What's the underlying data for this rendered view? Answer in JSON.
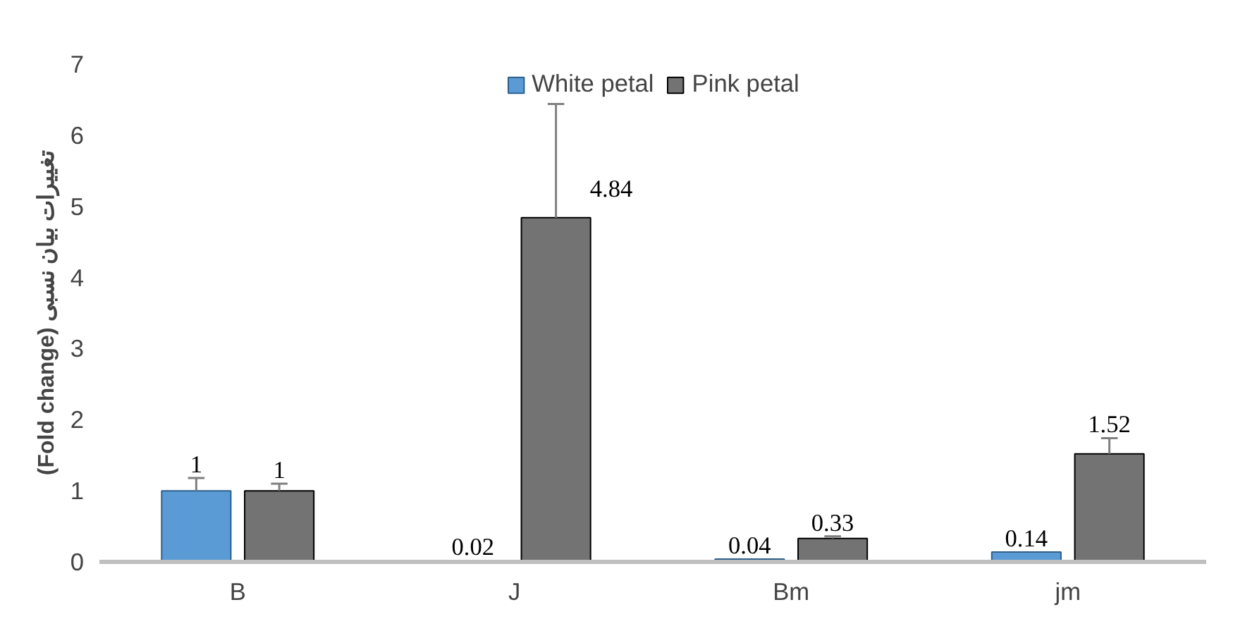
{
  "chart_data": {
    "type": "bar",
    "ylabel": "(Fold change) تغییرات بیان نسبی",
    "categories": [
      "B",
      "J",
      "Bm",
      "jm"
    ],
    "series": [
      {
        "name": "White petal",
        "color": "#5b9bd5",
        "values": [
          1,
          0.02,
          0.04,
          0.14
        ],
        "errors": [
          0.18,
          null,
          null,
          null
        ]
      },
      {
        "name": "Pink petal",
        "color": "#000000",
        "values": [
          1,
          4.84,
          0.33,
          1.52
        ],
        "errors": [
          0.1,
          1.6,
          0.03,
          0.22
        ]
      }
    ],
    "ylim": [
      0,
      7
    ],
    "yticks": [
      0,
      1,
      2,
      3,
      4,
      5,
      6,
      7
    ],
    "grid": false,
    "legend": "top",
    "data_labels": true
  }
}
